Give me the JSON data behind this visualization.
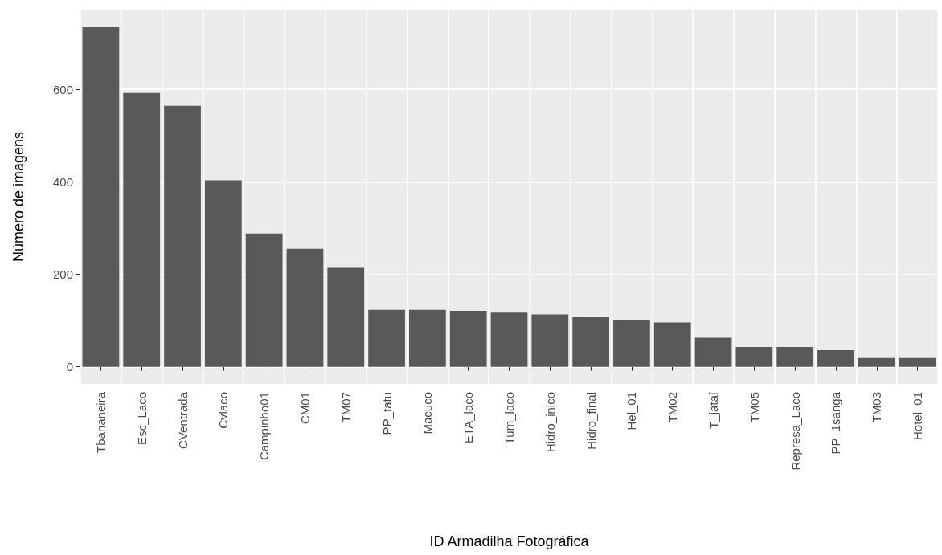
{
  "chart_data": {
    "type": "bar",
    "xlabel": "ID Armadilha Fotográfica",
    "ylabel": "Número de imagens",
    "categories": [
      "Tbananeira",
      "Esc_Laco",
      "CVentrada",
      "Cvlaco",
      "Campinho01",
      "CM01",
      "TM07",
      "PP_tatu",
      "Macuco",
      "ETA_laco",
      "Tum_laco",
      "Hidro_inico",
      "Hidro_final",
      "Hel_01",
      "TM02",
      "T_jataí",
      "TM05",
      "Represa_Laco",
      "PP_1sanga",
      "TM03",
      "Hotel_01"
    ],
    "values": [
      735,
      592,
      564,
      403,
      288,
      255,
      214,
      123,
      123,
      121,
      117,
      113,
      107,
      100,
      96,
      63,
      43,
      43,
      36,
      19,
      19
    ],
    "color": "#595959",
    "ylim": [
      -37,
      772
    ],
    "yticks": [
      0,
      200,
      400,
      600
    ],
    "grid": true
  }
}
